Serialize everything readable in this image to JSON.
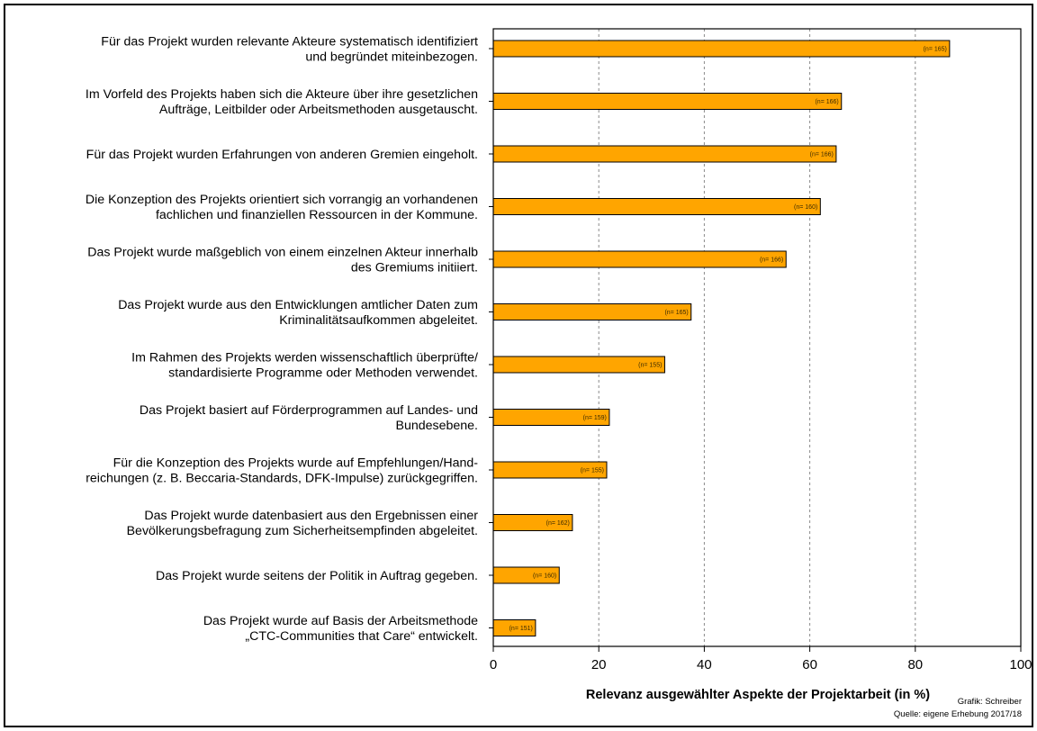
{
  "chart_data": {
    "type": "bar",
    "orientation": "horizontal",
    "categories": [
      [
        "Für das Projekt wurden relevante Akteure systematisch identifiziert",
        "und begründet miteinbezogen."
      ],
      [
        "Im Vorfeld des Projekts haben sich die Akteure über ihre gesetzlichen",
        "Aufträge, Leitbilder oder Arbeitsmethoden ausgetauscht."
      ],
      [
        "Für das Projekt wurden Erfahrungen von anderen Gremien eingeholt."
      ],
      [
        "Die Konzeption des Projekts orientiert sich vorrangig an vorhandenen",
        "fachlichen und finanziellen Ressourcen in der Kommune."
      ],
      [
        "Das Projekt wurde maßgeblich von einem einzelnen Akteur innerhalb",
        "des Gremiums initiiert."
      ],
      [
        "Das Projekt wurde aus den Entwicklungen amtlicher Daten zum",
        "Kriminalitätsaufkommen abgeleitet."
      ],
      [
        "Im Rahmen des Projekts werden wissenschaftlich überprüfte/",
        "standardisierte Programme oder Methoden verwendet."
      ],
      [
        "Das Projekt basiert auf Förderprogrammen auf Landes- und",
        "Bundesebene."
      ],
      [
        "Für die Konzeption des Projekts wurde auf Empfehlungen/Hand-",
        "reichungen (z. B. Beccaria-Standards, DFK-Impulse) zurückgegriffen."
      ],
      [
        "Das Projekt wurde datenbasiert aus den Ergebnissen einer",
        "Bevölkerungsbefragung zum Sicherheitsempfinden abgeleitet."
      ],
      [
        "Das Projekt wurde seitens der Politik in Auftrag gegeben."
      ],
      [
        "Das Projekt wurde auf Basis der Arbeitsmethode",
        "„CTC-Communities that Care“ entwickelt."
      ]
    ],
    "values": [
      86.5,
      66,
      65,
      62,
      55.5,
      37.5,
      32.5,
      22,
      21.5,
      15,
      12.5,
      8
    ],
    "n_labels": [
      "(n= 165)",
      "(n= 166)",
      "(n= 166)",
      "(n= 160)",
      "(n= 166)",
      "(n= 165)",
      "(n= 155)",
      "(n= 159)",
      "(n= 155)",
      "(n= 162)",
      "(n= 160)",
      "(n= 151)"
    ],
    "xlim": [
      0,
      100
    ],
    "xticks": [
      0,
      20,
      40,
      60,
      80,
      100
    ],
    "xlabel": "Relevanz ausgewählter Aspekte der Projektarbeit (in %)",
    "grid": "vertical dashed",
    "bar_color": "#FFA500",
    "bar_edge_color": "#000000"
  },
  "credits": {
    "author": "Grafik: Schreiber",
    "source": "Quelle: eigene Erhebung 2017/18"
  }
}
